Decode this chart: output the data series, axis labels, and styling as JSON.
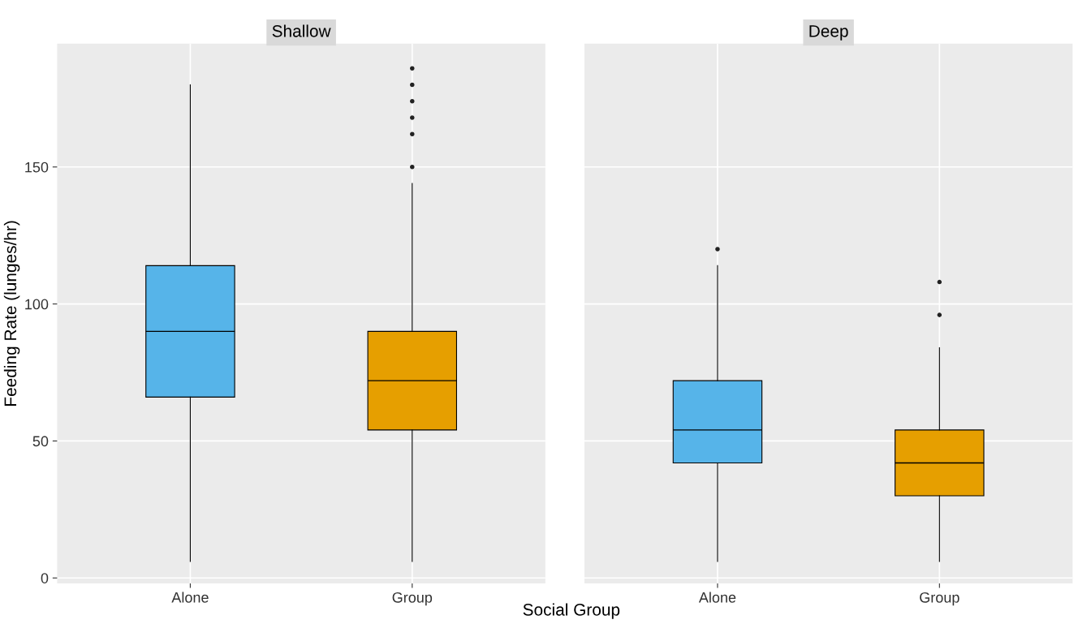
{
  "chart_data": [
    {
      "type": "box",
      "title": "Shallow",
      "ylabel": "Feeding Rate (lunges/hr)",
      "categories": [
        "Alone",
        "Group"
      ],
      "colors": [
        "#56b4e9",
        "#e69f00"
      ],
      "boxes": [
        {
          "low": 6,
          "q1": 66,
          "median": 90,
          "q3": 114,
          "high": 180
        },
        {
          "low": 6,
          "q1": 54,
          "median": 72,
          "q3": 90,
          "high": 144,
          "outliers": [
            150,
            162,
            168,
            174,
            180,
            186
          ]
        }
      ],
      "ylim": [
        -2,
        195
      ],
      "yticks": [
        0,
        50,
        100,
        150
      ],
      "grid": true
    },
    {
      "type": "box",
      "title": "Deep",
      "xlabel": "Social Group",
      "categories": [
        "Alone",
        "Group"
      ],
      "colors": [
        "#56b4e9",
        "#e69f00"
      ],
      "boxes": [
        {
          "low": 6,
          "q1": 42,
          "median": 54,
          "q3": 72,
          "high": 114,
          "outliers": [
            120
          ]
        },
        {
          "low": 6,
          "q1": 30,
          "median": 42,
          "q3": 54,
          "high": 84,
          "outliers": [
            96,
            108
          ]
        }
      ],
      "ylim": [
        -2,
        195
      ],
      "yticks": [
        0,
        50,
        100,
        150
      ],
      "grid": true,
      "tick_labels": "x"
    }
  ]
}
